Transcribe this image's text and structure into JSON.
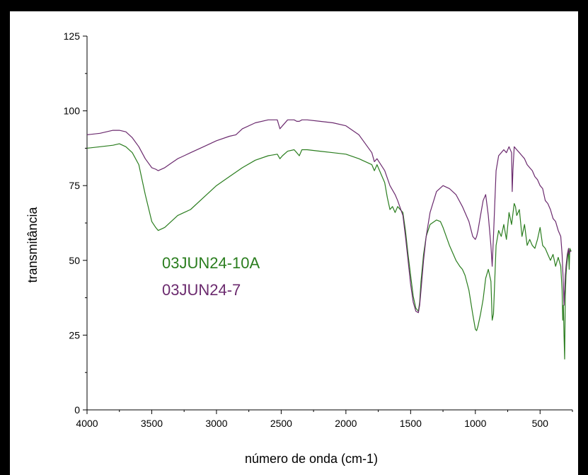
{
  "chart_data": {
    "type": "line",
    "xlabel": "número de onda (cm-1)",
    "ylabel": "transmitância",
    "xlim": [
      4000,
      250
    ],
    "ylim": [
      0,
      125
    ],
    "x_reversed": true,
    "xticks": [
      4000,
      3500,
      3000,
      2500,
      2000,
      1500,
      1000,
      500
    ],
    "yticks": [
      0,
      25,
      50,
      75,
      100,
      125
    ],
    "grid": false,
    "legend": "center-left",
    "series": [
      {
        "name": "03JUN24-10A",
        "color": "#2a7d1e",
        "x": [
          4000,
          3900,
          3800,
          3750,
          3700,
          3650,
          3600,
          3550,
          3500,
          3470,
          3450,
          3400,
          3350,
          3300,
          3250,
          3200,
          3100,
          3000,
          2900,
          2800,
          2700,
          2600,
          2530,
          2510,
          2490,
          2450,
          2400,
          2380,
          2360,
          2340,
          2300,
          2200,
          2100,
          2000,
          1900,
          1800,
          1780,
          1760,
          1700,
          1680,
          1660,
          1640,
          1620,
          1600,
          1560,
          1540,
          1520,
          1500,
          1480,
          1460,
          1440,
          1430,
          1420,
          1400,
          1380,
          1350,
          1300,
          1270,
          1250,
          1200,
          1150,
          1120,
          1100,
          1080,
          1050,
          1020,
          1000,
          990,
          980,
          960,
          940,
          920,
          900,
          880,
          870,
          860,
          840,
          820,
          800,
          780,
          760,
          740,
          720,
          700,
          690,
          680,
          660,
          640,
          620,
          600,
          580,
          560,
          540,
          520,
          500,
          480,
          460,
          440,
          420,
          400,
          380,
          360,
          340,
          330,
          325,
          320,
          315,
          310,
          305,
          300,
          295,
          290,
          285,
          280,
          275,
          270,
          260
        ],
        "y": [
          87.5,
          88,
          88.5,
          89,
          88,
          86,
          82,
          72,
          63,
          61,
          60,
          61,
          63,
          65,
          66,
          67,
          71,
          75,
          78,
          81,
          83.5,
          85,
          85.5,
          84,
          85,
          86.5,
          87,
          86,
          85,
          87,
          87,
          86.5,
          86,
          85.5,
          84,
          82,
          80,
          82,
          76,
          71,
          67,
          68,
          66,
          68,
          66,
          60,
          52,
          45,
          38,
          34,
          33,
          36,
          43,
          52,
          58,
          62,
          63.5,
          63,
          61,
          55,
          50,
          48,
          47,
          45,
          40,
          32,
          27,
          26.5,
          28,
          32,
          37,
          44,
          47,
          43,
          30,
          32,
          55,
          60,
          58,
          62,
          57,
          66,
          62,
          69,
          68,
          65,
          67,
          58,
          62,
          55,
          57,
          55,
          54,
          57,
          61,
          55,
          54,
          52,
          50,
          52,
          48,
          51,
          48,
          40,
          30,
          35,
          25,
          17,
          38,
          45,
          48,
          50,
          52,
          53,
          47,
          54,
          53
        ]
      },
      {
        "name": "03JUN24-7",
        "color": "#6b2a6e",
        "x": [
          4000,
          3900,
          3800,
          3750,
          3700,
          3650,
          3600,
          3550,
          3500,
          3470,
          3450,
          3400,
          3350,
          3300,
          3250,
          3200,
          3100,
          3000,
          2900,
          2850,
          2800,
          2700,
          2600,
          2530,
          2510,
          2490,
          2450,
          2400,
          2380,
          2360,
          2340,
          2300,
          2200,
          2100,
          2000,
          1900,
          1800,
          1780,
          1760,
          1700,
          1660,
          1620,
          1600,
          1560,
          1540,
          1520,
          1500,
          1480,
          1460,
          1440,
          1430,
          1420,
          1400,
          1380,
          1350,
          1300,
          1250,
          1200,
          1150,
          1100,
          1050,
          1020,
          1000,
          990,
          980,
          960,
          940,
          920,
          900,
          880,
          870,
          860,
          840,
          820,
          800,
          780,
          760,
          740,
          720,
          715,
          710,
          700,
          680,
          660,
          640,
          620,
          600,
          580,
          560,
          540,
          520,
          500,
          480,
          460,
          440,
          420,
          400,
          380,
          360,
          340,
          330,
          320,
          315,
          310,
          305,
          300,
          295,
          290,
          285,
          280,
          275,
          270,
          260
        ],
        "y": [
          92,
          92.5,
          93.5,
          93.5,
          93,
          91,
          88,
          84,
          81,
          80.5,
          80,
          81,
          82.5,
          84,
          85,
          86,
          88,
          90,
          91.5,
          92,
          94,
          96,
          97,
          97,
          94,
          95,
          97,
          97,
          96.5,
          96.5,
          97,
          97,
          96.5,
          96,
          95,
          92,
          86,
          83,
          84,
          80,
          75,
          72,
          70,
          65,
          58,
          50,
          42,
          36,
          33,
          32.5,
          35,
          40,
          50,
          58,
          66,
          73,
          75,
          74,
          72,
          68,
          63,
          58,
          57,
          58,
          60,
          65,
          70,
          72,
          65,
          55,
          48,
          58,
          80,
          85,
          86,
          87,
          86,
          88,
          86,
          73,
          80,
          88,
          87,
          86,
          85,
          84,
          82,
          81,
          80,
          78,
          77,
          75,
          74,
          70,
          69,
          67,
          64,
          63,
          60,
          58,
          52,
          42,
          35,
          40,
          45,
          48,
          50,
          52,
          53,
          54,
          52,
          53,
          53
        ]
      }
    ]
  }
}
